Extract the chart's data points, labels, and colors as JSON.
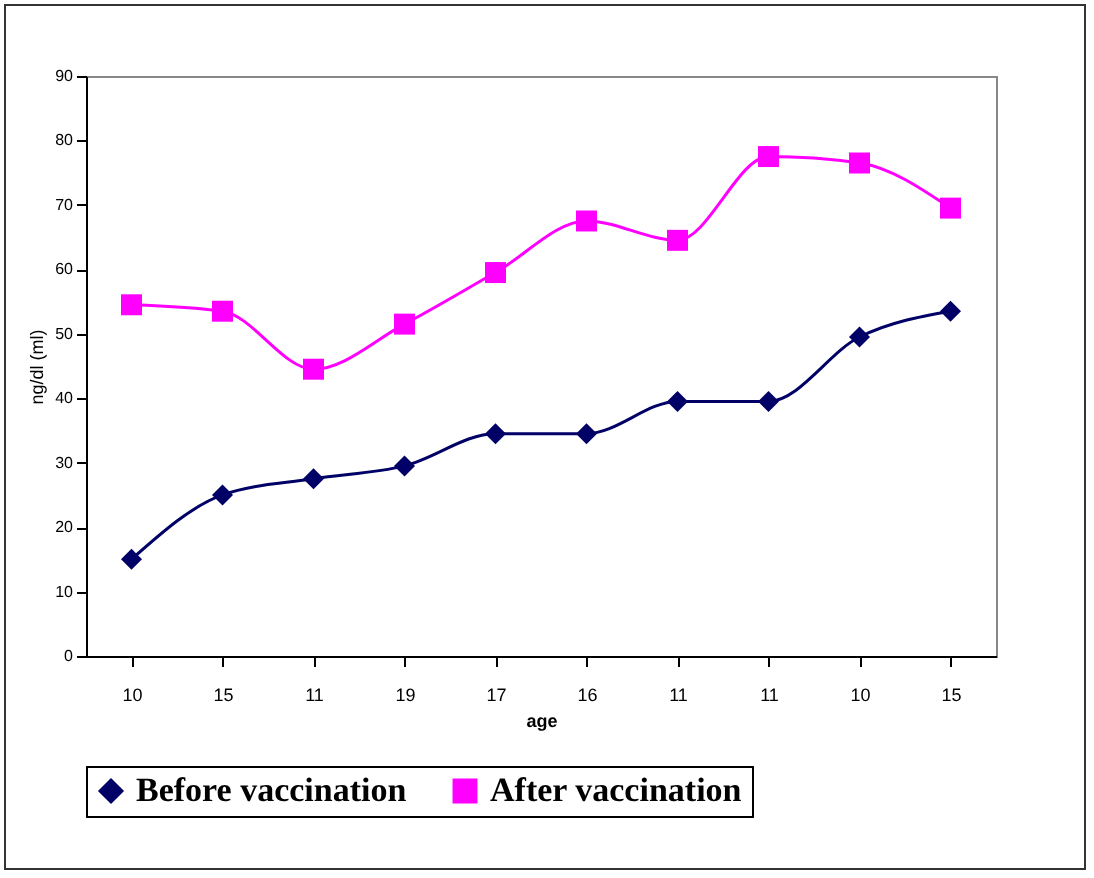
{
  "chart_data": {
    "type": "line",
    "xlabel": "age",
    "ylabel": "ng/dl (ml)",
    "categories": [
      "10",
      "15",
      "11",
      "19",
      "17",
      "16",
      "11",
      "11",
      "10",
      "15"
    ],
    "series": [
      {
        "name": "Before vaccination",
        "color": "#000066",
        "marker": "diamond",
        "values": [
          15,
          25,
          27.5,
          29.5,
          34.5,
          34.5,
          39.5,
          39.5,
          49.5,
          53.5
        ]
      },
      {
        "name": "After vaccination",
        "color": "#ff00ff",
        "marker": "square",
        "values": [
          54.5,
          53.5,
          44.5,
          51.5,
          59.5,
          67.5,
          64.5,
          77.5,
          76.5,
          69.5
        ]
      }
    ],
    "ylim": [
      0,
      90
    ],
    "yticks": [
      0,
      10,
      20,
      30,
      40,
      50,
      60,
      70,
      80,
      90
    ],
    "grid": false,
    "legend": "bottom"
  }
}
